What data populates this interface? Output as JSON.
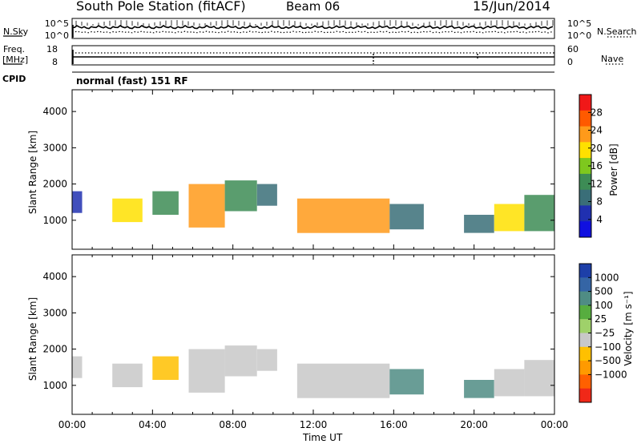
{
  "header": {
    "station": "South Pole Station (fitACF)",
    "beam": "Beam 06",
    "date": "15/Jun/2014"
  },
  "summary_panels": {
    "nsky_label": "N.Sky",
    "nsearch_label": "N.Search",
    "log_ticks": [
      "10^5",
      "10^0"
    ],
    "freq_label_1": "Freq.",
    "freq_label_2": "[MHz]",
    "freq_ticks": [
      "18",
      "8"
    ],
    "nave_label": "Nave",
    "nave_ticks": [
      "60",
      "0"
    ],
    "cpid_label": "CPID",
    "cpid_value": "normal (fast) 151 RF"
  },
  "colors": {
    "power_scale": [
      "#1010e0",
      "#2030b0",
      "#3a6e78",
      "#3d8c55",
      "#7ec81e",
      "#ffe000",
      "#ff9a1a",
      "#ff5a00",
      "#f01818"
    ],
    "velocity_scale": [
      "#1d3fa8",
      "#3565a5",
      "#4f8c84",
      "#57ad3f",
      "#9fd16a",
      "#c8c8c8",
      "#ffc000",
      "#ff9a00",
      "#ff6000",
      "#f02818"
    ]
  },
  "chart_data": [
    {
      "type": "heatmap",
      "title": "Power",
      "ylabel": "Slant Range [km]",
      "xlabel": "Time UT",
      "x_ticks": [
        "00:00",
        "04:00",
        "08:00",
        "12:00",
        "16:00",
        "20:00",
        "00:00"
      ],
      "y_ticks": [
        "1000",
        "2000",
        "3000",
        "4000"
      ],
      "ylim": [
        200,
        4600
      ],
      "colorbar_label": "Power [dB]",
      "colorbar_ticks": [
        "4",
        "8",
        "12",
        "16",
        "20",
        "24",
        "28"
      ],
      "colorbar_range": [
        0,
        32
      ],
      "echo_regions": [
        {
          "t0": 0.0,
          "t1": 0.5,
          "r0": 1200,
          "r1": 1800,
          "value": 6
        },
        {
          "t0": 2.0,
          "t1": 3.5,
          "r0": 950,
          "r1": 1600,
          "value": 18
        },
        {
          "t0": 4.0,
          "t1": 5.3,
          "r0": 1150,
          "r1": 1800,
          "value": 14
        },
        {
          "t0": 5.8,
          "t1": 7.6,
          "r0": 800,
          "r1": 2000,
          "value": 24
        },
        {
          "t0": 7.6,
          "t1": 9.2,
          "r0": 1250,
          "r1": 2100,
          "value": 14
        },
        {
          "t0": 9.2,
          "t1": 10.2,
          "r0": 1400,
          "r1": 2000,
          "value": 8
        },
        {
          "t0": 11.2,
          "t1": 15.8,
          "r0": 650,
          "r1": 1600,
          "value": 22
        },
        {
          "t0": 15.8,
          "t1": 17.5,
          "r0": 750,
          "r1": 1450,
          "value": 8
        },
        {
          "t0": 19.5,
          "t1": 21.0,
          "r0": 650,
          "r1": 1150,
          "value": 8
        },
        {
          "t0": 21.0,
          "t1": 22.5,
          "r0": 700,
          "r1": 1450,
          "value": 20
        },
        {
          "t0": 22.5,
          "t1": 24.0,
          "r0": 700,
          "r1": 1700,
          "value": 12
        }
      ]
    },
    {
      "type": "heatmap",
      "title": "Velocity",
      "ylabel": "Slant Range [km]",
      "xlabel": "Time UT",
      "x_ticks": [
        "00:00",
        "04:00",
        "08:00",
        "12:00",
        "16:00",
        "20:00",
        "00:00"
      ],
      "y_ticks": [
        "1000",
        "2000",
        "3000",
        "4000"
      ],
      "ylim": [
        200,
        4600
      ],
      "colorbar_label": "Velocity [m s⁻¹]",
      "colorbar_ticks": [
        "1000",
        "500",
        "100",
        "25",
        "−25",
        "−100",
        "−500",
        "−1000"
      ],
      "echo_regions": [
        {
          "t0": 0.0,
          "t1": 0.5,
          "r0": 1200,
          "r1": 1800,
          "value": -100
        },
        {
          "t0": 2.0,
          "t1": 3.5,
          "r0": 950,
          "r1": 1600,
          "value": -100
        },
        {
          "t0": 4.0,
          "t1": 5.3,
          "r0": 1150,
          "r1": 1800,
          "value": -120
        },
        {
          "t0": 5.8,
          "t1": 7.6,
          "r0": 800,
          "r1": 2000,
          "value": -100
        },
        {
          "t0": 7.6,
          "t1": 9.2,
          "r0": 1250,
          "r1": 2100,
          "value": -100
        },
        {
          "t0": 9.2,
          "t1": 10.2,
          "r0": 1400,
          "r1": 2000,
          "value": -100
        },
        {
          "t0": 11.2,
          "t1": 15.8,
          "r0": 650,
          "r1": 1600,
          "value": -100
        },
        {
          "t0": 15.8,
          "t1": 17.5,
          "r0": 750,
          "r1": 1450,
          "value": 200
        },
        {
          "t0": 19.5,
          "t1": 21.0,
          "r0": 650,
          "r1": 1150,
          "value": 200
        },
        {
          "t0": 21.0,
          "t1": 22.5,
          "r0": 700,
          "r1": 1450,
          "value": -100
        },
        {
          "t0": 22.5,
          "t1": 24.0,
          "r0": 700,
          "r1": 1700,
          "value": -100
        }
      ]
    }
  ]
}
